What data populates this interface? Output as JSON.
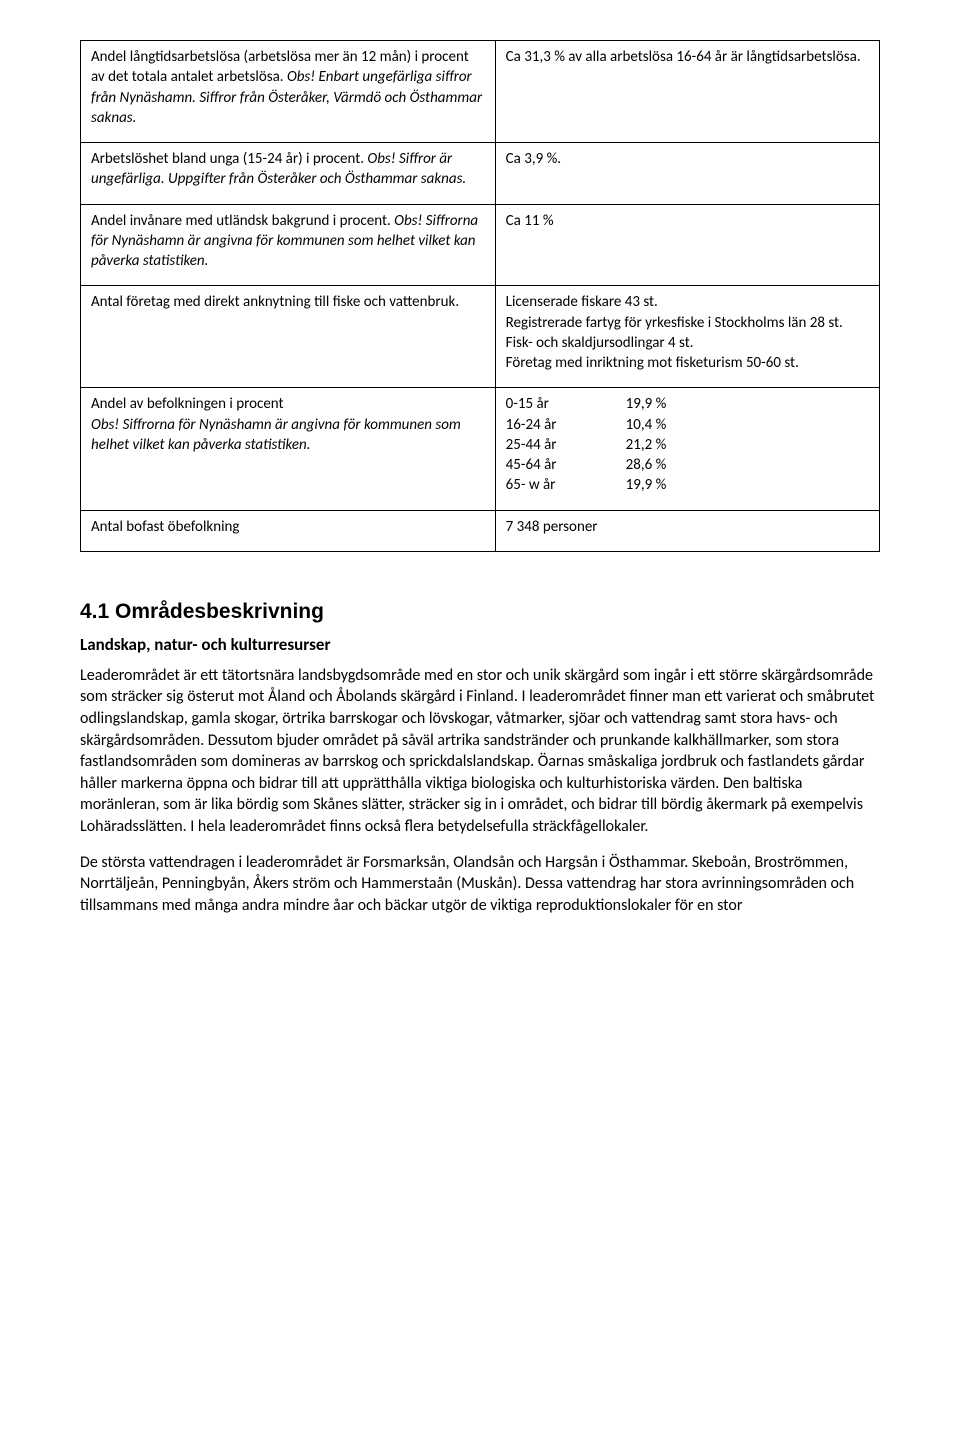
{
  "table": {
    "rows": [
      {
        "left_main": "Andel långtidsarbetslösa (arbetslösa mer än 12 mån) i procent av det totala antalet arbetslösa. ",
        "left_italic": "Obs! Enbart ungefärliga siffror från Nynäshamn. Siffror från Österåker, Värmdö och Östhammar saknas.",
        "right": "Ca 31,3 % av alla arbetslösa 16-64 år är långtidsarbetslösa."
      },
      {
        "left_main": "Arbetslöshet bland unga (15-24 år) i procent. ",
        "left_italic": "Obs! Siffror är ungefärliga. Uppgifter från Österåker och Östhammar saknas.",
        "right": "Ca 3,9 %."
      },
      {
        "left_main": "Andel invånare med utländsk bakgrund i procent. ",
        "left_italic": "Obs! Siffrorna för Nynäshamn är angivna för kommunen som helhet vilket kan påverka statistiken.",
        "right": "Ca 11 %"
      },
      {
        "left_main": "Antal företag med direkt anknytning till fiske och vattenbruk.",
        "left_italic": "",
        "right_lines": [
          "Licenserade fiskare 43 st.",
          "Registrerade fartyg för yrkesfiske i Stockholms län 28 st.",
          "Fisk- och skaldjursodlingar 4 st.",
          "Företag med inriktning mot fisketurism 50-60 st."
        ]
      },
      {
        "left_main": "Andel av befolkningen i procent",
        "left_italic": "Obs! Siffrorna för Nynäshamn är angivna för kommunen som helhet vilket kan påverka statistiken.",
        "age_groups": [
          {
            "label": "0-15 år",
            "value": "19,9 %"
          },
          {
            "label": "16-24 år",
            "value": "10,4 %"
          },
          {
            "label": "25-44 år",
            "value": "21,2 %"
          },
          {
            "label": "45-64 år",
            "value": "28,6 %"
          },
          {
            "label": "65- w år",
            "value": "19,9 %"
          }
        ]
      },
      {
        "left_main": "Antal bofast öbefolkning",
        "left_italic": "",
        "right": "7 348 personer"
      }
    ]
  },
  "section": {
    "heading": "4.1 Områdesbeskrivning",
    "subheading": "Landskap, natur- och kulturresurser",
    "p1": "Leaderområdet är ett tätortsnära landsbygdsområde med en stor och unik skärgård som ingår i ett större skärgårdsområde som sträcker sig österut mot Åland och Åbolands skärgård i Finland. I leaderområdet finner man ett varierat och småbrutet odlingslandskap, gamla skogar, örtrika barrskogar och lövskogar, våtmarker, sjöar och vattendrag samt stora havs- och skärgårdsområden. Dessutom bjuder området på såväl artrika sandstränder och prunkande kalkhällmarker, som stora fastlandsområden som domineras av barrskog och sprickdalslandskap. Öarnas småskaliga jordbruk och fastlandets gårdar håller markerna öppna och bidrar till att upprätthålla viktiga biologiska och kulturhistoriska värden. Den baltiska moränleran, som är lika bördig som Skånes slätter, sträcker sig in i området, och bidrar till bördig åkermark på exempelvis Lohäradsslätten. I hela leaderområdet finns också flera betydelsefulla sträckfågellokaler.",
    "p2": "De största vattendragen i leaderområdet är Forsmarksån, Olandsån och Hargsån i Östhammar. Skeboån, Broströmmen, Norrtäljeån, Penningbyån, Åkers ström och Hammerstaån (Muskån). Dessa vattendrag har stora avrinningsområden och tillsammans med många andra mindre åar och bäckar utgör de viktiga reproduktionslokaler för en stor"
  }
}
